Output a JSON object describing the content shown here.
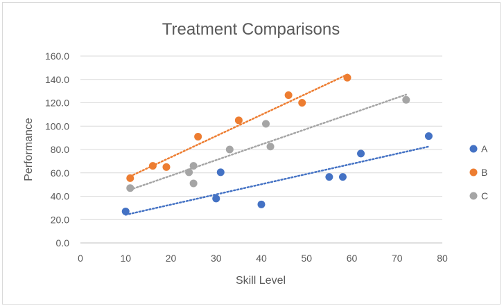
{
  "chart_data": {
    "type": "scatter",
    "title": "Treatment Comparisons",
    "xlabel": "Skill Level",
    "ylabel": "Performance",
    "xlim": [
      0,
      80
    ],
    "ylim": [
      0,
      160
    ],
    "x_ticks": [
      "0",
      "10",
      "20",
      "30",
      "40",
      "50",
      "60",
      "70",
      "80"
    ],
    "y_ticks": [
      "0.0",
      "20.0",
      "40.0",
      "60.0",
      "80.0",
      "100.0",
      "120.0",
      "140.0",
      "160.0"
    ],
    "grid": "horizontal",
    "legend_position": "right",
    "trendlines": "linear, dotted",
    "series": [
      {
        "name": "A",
        "color": "#4472c4",
        "points": [
          [
            10,
            27
          ],
          [
            30,
            38
          ],
          [
            31,
            60.5
          ],
          [
            40,
            33
          ],
          [
            55,
            56.5
          ],
          [
            58,
            56.5
          ],
          [
            62,
            76.5
          ],
          [
            77,
            91.5
          ]
        ]
      },
      {
        "name": "B",
        "color": "#ed7d31",
        "points": [
          [
            11,
            55.5
          ],
          [
            16,
            66
          ],
          [
            19,
            65
          ],
          [
            26,
            91
          ],
          [
            35,
            105
          ],
          [
            46,
            126.5
          ],
          [
            49,
            120
          ],
          [
            59,
            141.5
          ]
        ]
      },
      {
        "name": "C",
        "color": "#a5a5a5",
        "points": [
          [
            11,
            47
          ],
          [
            24,
            60.5
          ],
          [
            25,
            51
          ],
          [
            25,
            66
          ],
          [
            33,
            80
          ],
          [
            41,
            102
          ],
          [
            42,
            82.5
          ],
          [
            72,
            122.5
          ]
        ]
      }
    ]
  }
}
